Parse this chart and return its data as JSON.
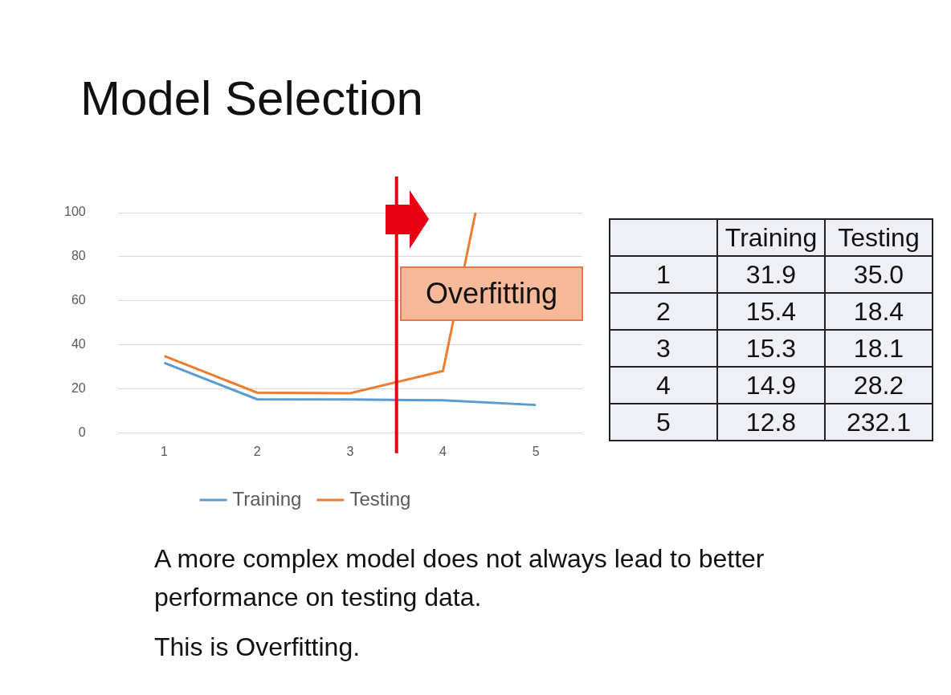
{
  "chart_data": [
    {
      "type": "line",
      "title": "Model Selection",
      "x": [
        1,
        2,
        3,
        4,
        5
      ],
      "xlim": [
        0.5,
        5.5
      ],
      "xticks": [
        1,
        2,
        3,
        4,
        5
      ],
      "ylim": [
        0,
        100
      ],
      "yticks": [
        0,
        20,
        40,
        60,
        80,
        100
      ],
      "grid": "y",
      "legend": "bottom",
      "marker": "none",
      "series": [
        {
          "name": "Training",
          "color": "#5b9bd5",
          "values": [
            31.9,
            15.4,
            15.3,
            14.9,
            12.8
          ]
        },
        {
          "name": "Testing",
          "color": "#ed7d31",
          "x": [
            1,
            2,
            3,
            4,
            4.35
          ],
          "values": [
            35.0,
            18.4,
            18.1,
            28.2,
            100
          ]
        }
      ],
      "ref_lines": [
        {
          "axis": "x",
          "value": 3.5,
          "color": "#e60012"
        }
      ],
      "annotations": [
        "Overfitting",
        "A more complex model does not always lead to better performance on testing data.",
        "This is Overfitting."
      ]
    },
    {
      "type": "heatmap",
      "categories": [
        "Training",
        "Testing"
      ],
      "y_categories": [
        "1",
        "2",
        "3",
        "4",
        "5"
      ],
      "cells": [
        [
          31.9,
          35.0
        ],
        [
          15.4,
          18.4
        ],
        [
          15.3,
          18.1
        ],
        [
          14.9,
          28.2
        ],
        [
          12.8,
          232.1
        ]
      ],
      "cell_labels": [
        [
          "31.9",
          "35.0"
        ],
        [
          "15.4",
          "18.4"
        ],
        [
          "15.3",
          "18.1"
        ],
        [
          "14.9",
          "28.2"
        ],
        [
          "12.8",
          "232.1"
        ]
      ],
      "data_labels": true
    }
  ]
}
